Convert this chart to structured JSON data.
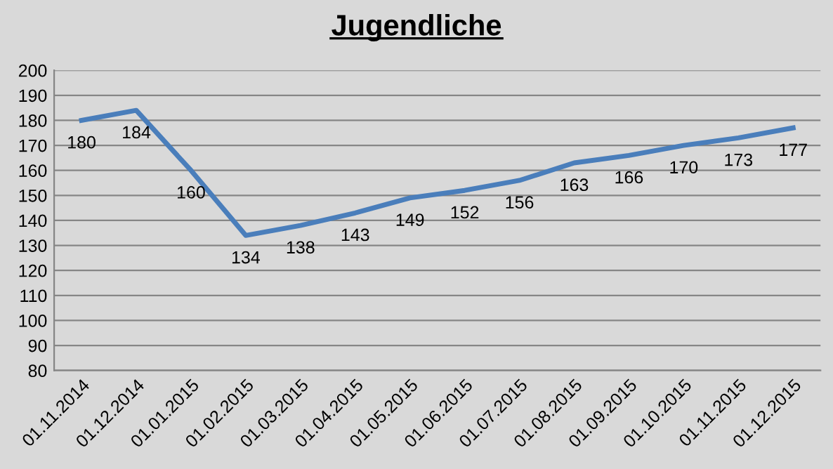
{
  "chart_data": {
    "type": "line",
    "title": "Jugendliche",
    "categories": [
      "01.11.2014",
      "01.12.2014",
      "01.01.2015",
      "01.02.2015",
      "01.03.2015",
      "01.04.2015",
      "01.05.2015",
      "01.06.2015",
      "01.07.2015",
      "01.08.2015",
      "01.09.2015",
      "01.10.2015",
      "01.11.2015",
      "01.12.2015"
    ],
    "series": [
      {
        "color": "#4a7ebb",
        "values": [
          180,
          184,
          160,
          134,
          138,
          143,
          149,
          152,
          156,
          163,
          166,
          170,
          173,
          177
        ]
      }
    ],
    "ylim": [
      80,
      200
    ],
    "yticks": [
      80,
      90,
      100,
      110,
      120,
      130,
      140,
      150,
      160,
      170,
      180,
      190,
      200
    ],
    "grid": "y",
    "data_labels": true,
    "marker": "none",
    "line_style": "solid",
    "legend": false
  }
}
